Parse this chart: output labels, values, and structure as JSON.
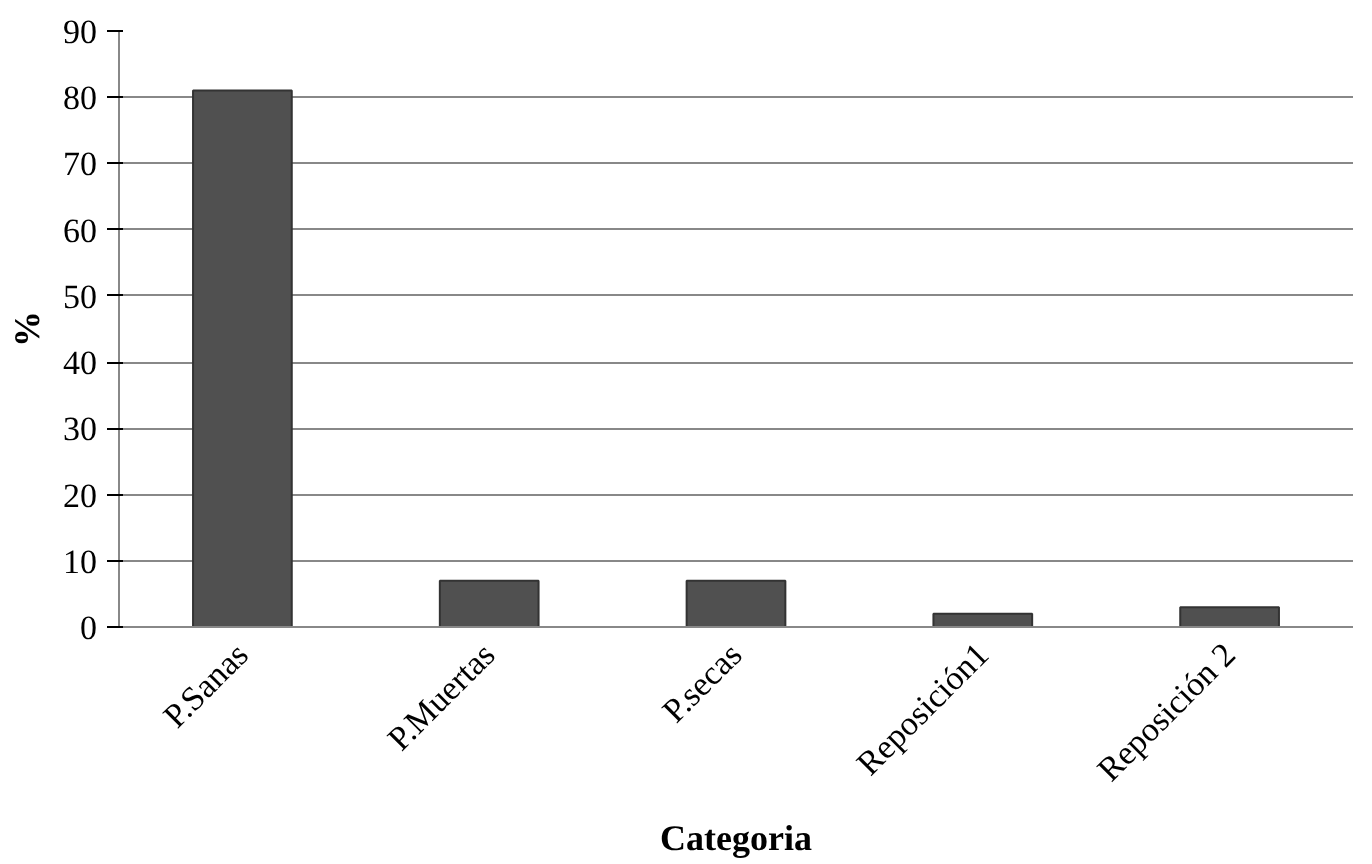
{
  "chart_data": {
    "type": "bar",
    "xlabel": "Categoria",
    "ylabel": "%",
    "categories": [
      "P.Sanas",
      "P.Muertas",
      "P.secas",
      "Reposición1",
      "Reposición 2"
    ],
    "values": [
      81,
      7,
      7,
      2,
      3
    ],
    "color": "#505050",
    "ylim": [
      0,
      90
    ],
    "yticks": [
      0,
      10,
      20,
      30,
      40,
      50,
      60,
      70,
      80,
      90
    ],
    "grid": "y"
  }
}
